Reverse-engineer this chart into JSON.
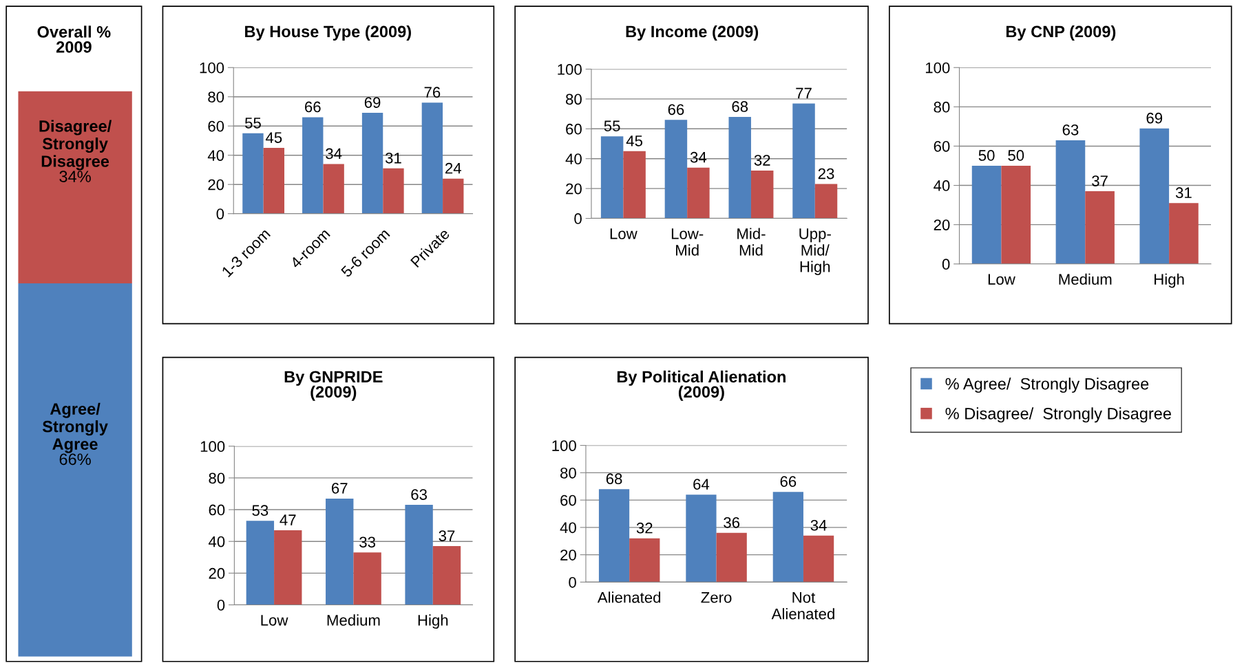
{
  "chart_data": [
    {
      "type": "bar",
      "title": "Overall %\n2009",
      "stacked": true,
      "categories": [
        null
      ],
      "tick_labels": false,
      "series": [
        {
          "name": "Agree/\nStrongly\nAgree",
          "color": "#4f81bd",
          "values": [
            66
          ],
          "value_labels": [
            "66%"
          ]
        },
        {
          "name": "Disagree/\nStrongly\nDisagree",
          "color": "#c0504d",
          "values": [
            34
          ],
          "value_labels": [
            "34%"
          ]
        }
      ]
    },
    {
      "type": "bar",
      "title": "By House Type (2009)",
      "categories": [
        "1-3 room",
        "4-room",
        "5-6 room",
        "Private"
      ],
      "ylim": [
        0,
        100
      ],
      "yticks": [
        0,
        20,
        40,
        60,
        80,
        100
      ],
      "grid": "y",
      "data_labels": true,
      "series": [
        {
          "color": "#4f81bd",
          "values": [
            55,
            66,
            69,
            76
          ]
        },
        {
          "color": "#c0504d",
          "values": [
            45,
            34,
            31,
            24
          ]
        }
      ]
    },
    {
      "type": "bar",
      "title": "By Income (2009)",
      "categories": [
        "Low",
        "Low-\nMid",
        "Mid-\nMid",
        "Upp-\nMid/\nHigh"
      ],
      "ylim": [
        0,
        100
      ],
      "yticks": [
        0,
        20,
        40,
        60,
        80,
        100
      ],
      "grid": "y",
      "data_labels": true,
      "series": [
        {
          "color": "#4f81bd",
          "values": [
            55,
            66,
            68,
            77
          ]
        },
        {
          "color": "#c0504d",
          "values": [
            45,
            34,
            32,
            23
          ]
        }
      ]
    },
    {
      "type": "bar",
      "title": "By CNP (2009)",
      "categories": [
        "Low",
        "Medium",
        "High"
      ],
      "ylim": [
        0,
        100
      ],
      "yticks": [
        0,
        20,
        40,
        60,
        80,
        100
      ],
      "grid": "y",
      "data_labels": true,
      "series": [
        {
          "color": "#4f81bd",
          "values": [
            50,
            63,
            69
          ]
        },
        {
          "color": "#c0504d",
          "values": [
            50,
            37,
            31
          ]
        }
      ]
    },
    {
      "type": "bar",
      "title": "By GNPRIDE\n(2009)",
      "categories": [
        "Low",
        "Medium",
        "High"
      ],
      "ylim": [
        0,
        100
      ],
      "yticks": [
        0,
        20,
        40,
        60,
        80,
        100
      ],
      "grid": "y",
      "data_labels": true,
      "series": [
        {
          "color": "#4f81bd",
          "values": [
            53,
            67,
            63
          ]
        },
        {
          "color": "#c0504d",
          "values": [
            47,
            33,
            37
          ]
        }
      ]
    },
    {
      "type": "bar",
      "title": "By Political Alienation\n(2009)",
      "categories": [
        "Alienated",
        "Zero",
        "Not\nAlienated"
      ],
      "ylim": [
        0,
        100
      ],
      "yticks": [
        0,
        20,
        40,
        60,
        80,
        100
      ],
      "grid": "y",
      "data_labels": true,
      "legend": "right",
      "series": [
        {
          "name": "% Agree/  Strongly Disagree",
          "color": "#4f81bd",
          "values": [
            68,
            64,
            66
          ]
        },
        {
          "name": "% Disagree/  Strongly Disagree",
          "color": "#c0504d",
          "values": [
            32,
            36,
            34
          ]
        }
      ]
    }
  ]
}
